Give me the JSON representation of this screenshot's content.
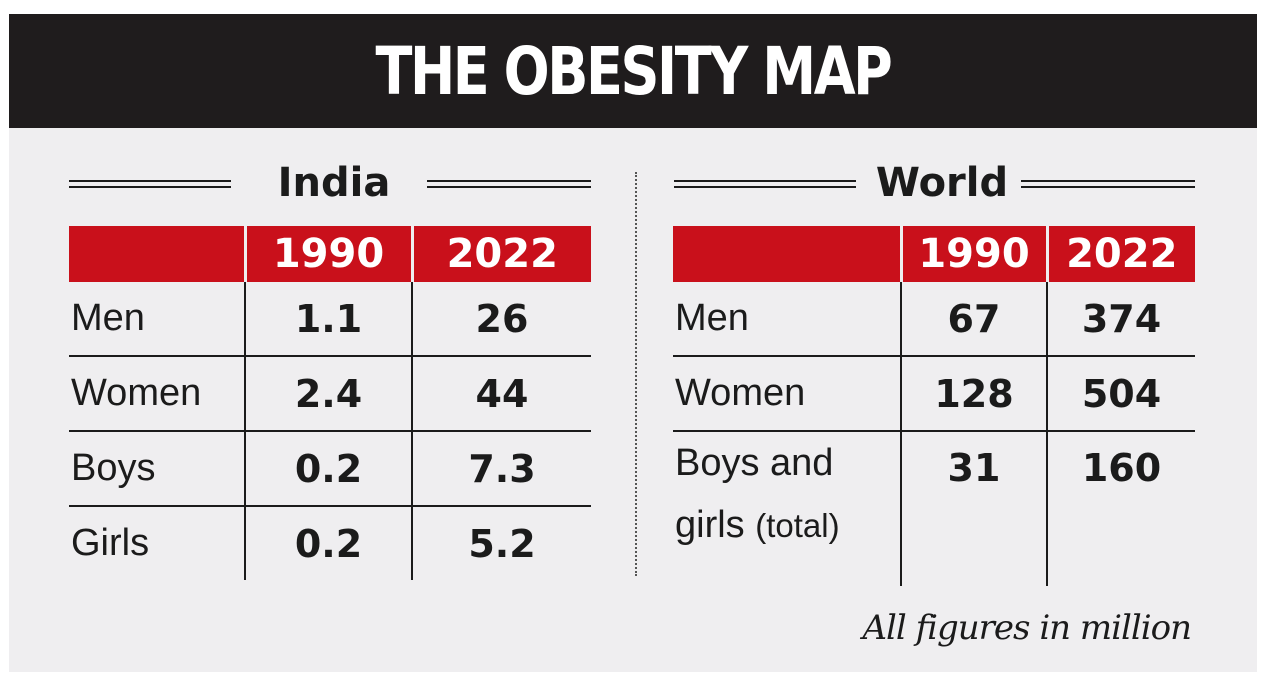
{
  "title": "THE OBESITY MAP",
  "footnote": "All figures in million",
  "colors": {
    "banner": "#1f1c1d",
    "header_red": "#c9101b",
    "background": "#efeef0"
  },
  "chart_data": [
    {
      "type": "table",
      "title": "India",
      "columns": [
        "",
        "1990",
        "2022"
      ],
      "rows": [
        {
          "label": "Men",
          "values": [
            "1.1",
            "26"
          ]
        },
        {
          "label": "Women",
          "values": [
            "2.4",
            "44"
          ]
        },
        {
          "label": "Boys",
          "values": [
            "0.2",
            "7.3"
          ]
        },
        {
          "label": "Girls",
          "values": [
            "0.2",
            "5.2"
          ]
        }
      ]
    },
    {
      "type": "table",
      "title": "World",
      "columns": [
        "",
        "1990",
        "2022"
      ],
      "rows": [
        {
          "label": "Men",
          "values": [
            "67",
            "374"
          ]
        },
        {
          "label": "Women",
          "values": [
            "128",
            "504"
          ]
        },
        {
          "label": "Boys and",
          "label_line2": "girls",
          "label_suffix": "(total)",
          "values": [
            "31",
            "160"
          ]
        }
      ]
    }
  ]
}
